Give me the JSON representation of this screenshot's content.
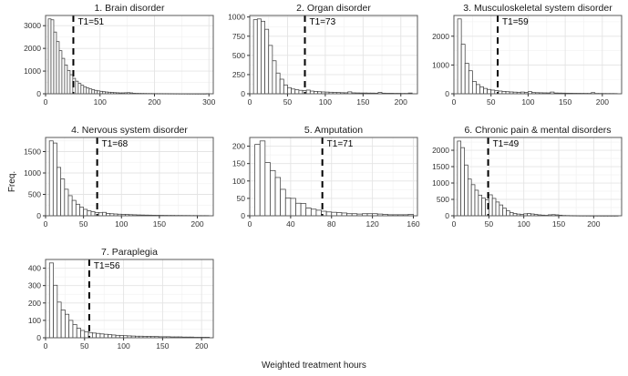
{
  "figure": {
    "xlabel": "Weighted treatment hours",
    "ylabel": "Freq.",
    "colors": {
      "background": "#ffffff",
      "bar_fill": "#ffffff",
      "bar_stroke": "#404040",
      "grid_major": "#e4e4e4",
      "grid_minor": "#f2f2f2",
      "panel_border": "#595959",
      "threshold_line": "#000000",
      "tick_text": "#333333"
    }
  },
  "chart_data": [
    {
      "type": "histogram",
      "title": "1. Brain disorder",
      "t1": 51,
      "t1_label": "T1=51",
      "bin_start": 5,
      "bin_width": 5,
      "x_domain": [
        0,
        308
      ],
      "y_domain": [
        0,
        3450
      ],
      "x_ticks": [
        0,
        100,
        200,
        300
      ],
      "y_ticks": [
        0,
        1000,
        2000,
        3000
      ],
      "heights": [
        3300,
        3260,
        2720,
        2300,
        1900,
        1560,
        1270,
        1030,
        840,
        680,
        555,
        455,
        375,
        310,
        255,
        215,
        180,
        150,
        128,
        108,
        92,
        78,
        68,
        58,
        50,
        44,
        38,
        40,
        45,
        50,
        40,
        24,
        20,
        18,
        16,
        15,
        13,
        12,
        11,
        10,
        9,
        9,
        8,
        8,
        7,
        7,
        6,
        6,
        5,
        5,
        5,
        4,
        4,
        4,
        3,
        3,
        3,
        2,
        8
      ]
    },
    {
      "type": "histogram",
      "title": "2. Organ disorder",
      "t1": 73,
      "t1_label": "T1=73",
      "bin_start": 5,
      "bin_width": 5,
      "x_domain": [
        0,
        222
      ],
      "y_domain": [
        0,
        1020
      ],
      "x_ticks": [
        0,
        50,
        100,
        150,
        200
      ],
      "y_ticks": [
        0,
        250,
        500,
        750,
        1000
      ],
      "heights": [
        965,
        975,
        945,
        840,
        630,
        430,
        270,
        190,
        115,
        80,
        62,
        52,
        45,
        40,
        48,
        35,
        30,
        27,
        24,
        22,
        20,
        18,
        16,
        14,
        13,
        25,
        12,
        11,
        10,
        10,
        9,
        9,
        8,
        18,
        8,
        7,
        7,
        6,
        6,
        5,
        5,
        10
      ]
    },
    {
      "type": "histogram",
      "title": "3. Musculoskeletal system disorder",
      "t1": 59,
      "t1_label": "T1=59",
      "bin_start": 5,
      "bin_width": 5,
      "x_domain": [
        0,
        226
      ],
      "y_domain": [
        0,
        2720
      ],
      "x_ticks": [
        0,
        50,
        100,
        150,
        200
      ],
      "y_ticks": [
        0,
        1000,
        2000
      ],
      "heights": [
        2600,
        1720,
        1060,
        800,
        430,
        320,
        240,
        185,
        150,
        128,
        110,
        95,
        82,
        72,
        64,
        57,
        52,
        60,
        45,
        75,
        42,
        38,
        35,
        32,
        30,
        60,
        27,
        25,
        23,
        21,
        20,
        18,
        17,
        16,
        15,
        14,
        40,
        13,
        12,
        11,
        10,
        10,
        9
      ]
    },
    {
      "type": "histogram",
      "title": "4. Nervous system disorder",
      "t1": 68,
      "t1_label": "T1=68",
      "bin_start": 5,
      "bin_width": 5,
      "x_domain": [
        0,
        221
      ],
      "y_domain": [
        0,
        1830
      ],
      "x_ticks": [
        0,
        50,
        100,
        150,
        200
      ],
      "y_ticks": [
        0,
        500,
        1000,
        1500
      ],
      "heights": [
        1750,
        1700,
        1130,
        860,
        620,
        470,
        360,
        270,
        200,
        150,
        115,
        95,
        78,
        70,
        80,
        55,
        48,
        42,
        37,
        33,
        29,
        26,
        23,
        20,
        18,
        16,
        15,
        13,
        12,
        11,
        10,
        9,
        9,
        8,
        8,
        7,
        7,
        6,
        6,
        5,
        5,
        5
      ]
    },
    {
      "type": "histogram",
      "title": "5. Amputation",
      "t1": 71,
      "t1_label": "T1=71",
      "bin_start": 5,
      "bin_width": 5,
      "x_domain": [
        0,
        164
      ],
      "y_domain": [
        0,
        225
      ],
      "x_ticks": [
        0,
        40,
        80,
        120,
        160
      ],
      "y_ticks": [
        0,
        50,
        100,
        150,
        200
      ],
      "heights": [
        205,
        215,
        153,
        130,
        110,
        76,
        51,
        50,
        36,
        35,
        22,
        19,
        16,
        13,
        11,
        10,
        9,
        8,
        6,
        6,
        5,
        6,
        6,
        6,
        5,
        4,
        3,
        3,
        3,
        3,
        4
      ]
    },
    {
      "type": "histogram",
      "title": "6. Chronic pain & mental disorders",
      "t1": 49,
      "t1_label": "T1=49",
      "bin_start": 5,
      "bin_width": 5,
      "x_domain": [
        0,
        240
      ],
      "y_domain": [
        0,
        2390
      ],
      "x_ticks": [
        0,
        50,
        100,
        150,
        200
      ],
      "y_ticks": [
        0,
        500,
        1000,
        1500,
        2000
      ],
      "heights": [
        2280,
        2080,
        1550,
        1120,
        950,
        780,
        630,
        540,
        490,
        640,
        530,
        420,
        330,
        230,
        150,
        100,
        72,
        52,
        38,
        60,
        70,
        55,
        40,
        28,
        20,
        15,
        30,
        35,
        28,
        18,
        10,
        8,
        6,
        5,
        4,
        3,
        3,
        2,
        2,
        2,
        2,
        1,
        1,
        1,
        1,
        1
      ]
    },
    {
      "type": "histogram",
      "title": "7. Paraplegia",
      "t1": 56,
      "t1_label": "T1=56",
      "bin_start": 5,
      "bin_width": 5,
      "x_domain": [
        0,
        215
      ],
      "y_domain": [
        0,
        450
      ],
      "x_ticks": [
        0,
        50,
        100,
        150,
        200
      ],
      "y_ticks": [
        0,
        100,
        200,
        300,
        400
      ],
      "heights": [
        430,
        302,
        205,
        160,
        135,
        100,
        76,
        55,
        42,
        34,
        30,
        27,
        25,
        22,
        20,
        18,
        16,
        14,
        13,
        12,
        11,
        10,
        9,
        9,
        8,
        8,
        7,
        7,
        6,
        6,
        6,
        5,
        5,
        5,
        4,
        4,
        4,
        3,
        3,
        3,
        3
      ]
    }
  ]
}
